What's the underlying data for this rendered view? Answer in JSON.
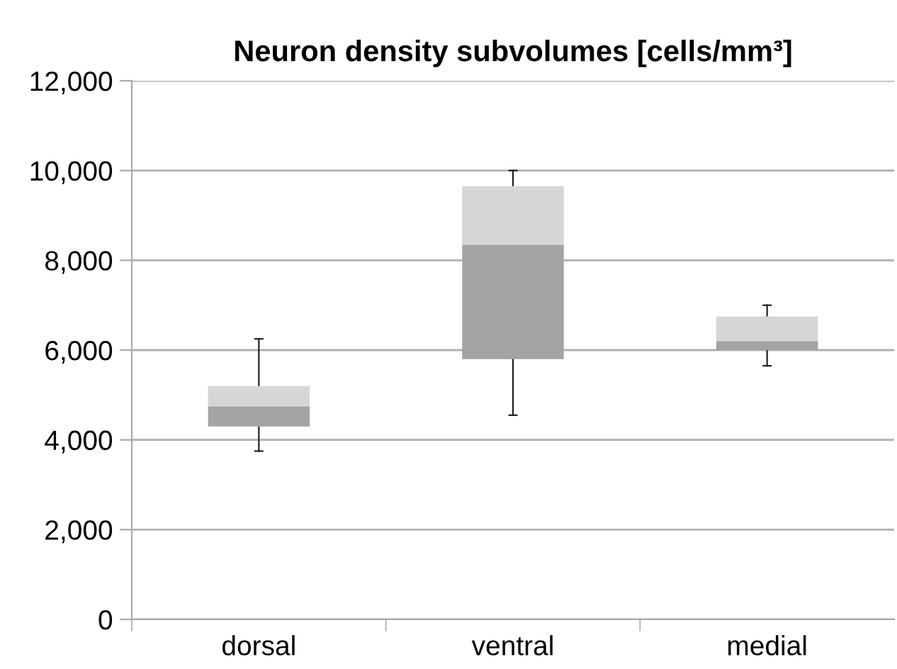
{
  "chart_data": {
    "type": "box",
    "title": "Neuron density subvolumes [cells/mm³]",
    "categories": [
      "dorsal",
      "ventral",
      "medial"
    ],
    "boxes": [
      {
        "low": 3750,
        "q1": 4300,
        "median": 4750,
        "q3": 5200,
        "high": 6250
      },
      {
        "low": 4550,
        "q1": 5800,
        "median": 8350,
        "q3": 9650,
        "high": 10000
      },
      {
        "low": 5650,
        "q1": 6000,
        "median": 6200,
        "q3": 6750,
        "high": 7000
      }
    ],
    "color": "#a3a3a3",
    "ylim": [
      0,
      12000
    ],
    "yticks": [
      {
        "value": 0,
        "label": "0"
      },
      {
        "value": 2000,
        "label": "2,000"
      },
      {
        "value": 4000,
        "label": "4,000"
      },
      {
        "value": 6000,
        "label": "6,000"
      },
      {
        "value": 8000,
        "label": "8,000"
      },
      {
        "value": 10000,
        "label": "10,000"
      },
      {
        "value": 12000,
        "label": "12,000"
      }
    ],
    "grid": "y"
  }
}
